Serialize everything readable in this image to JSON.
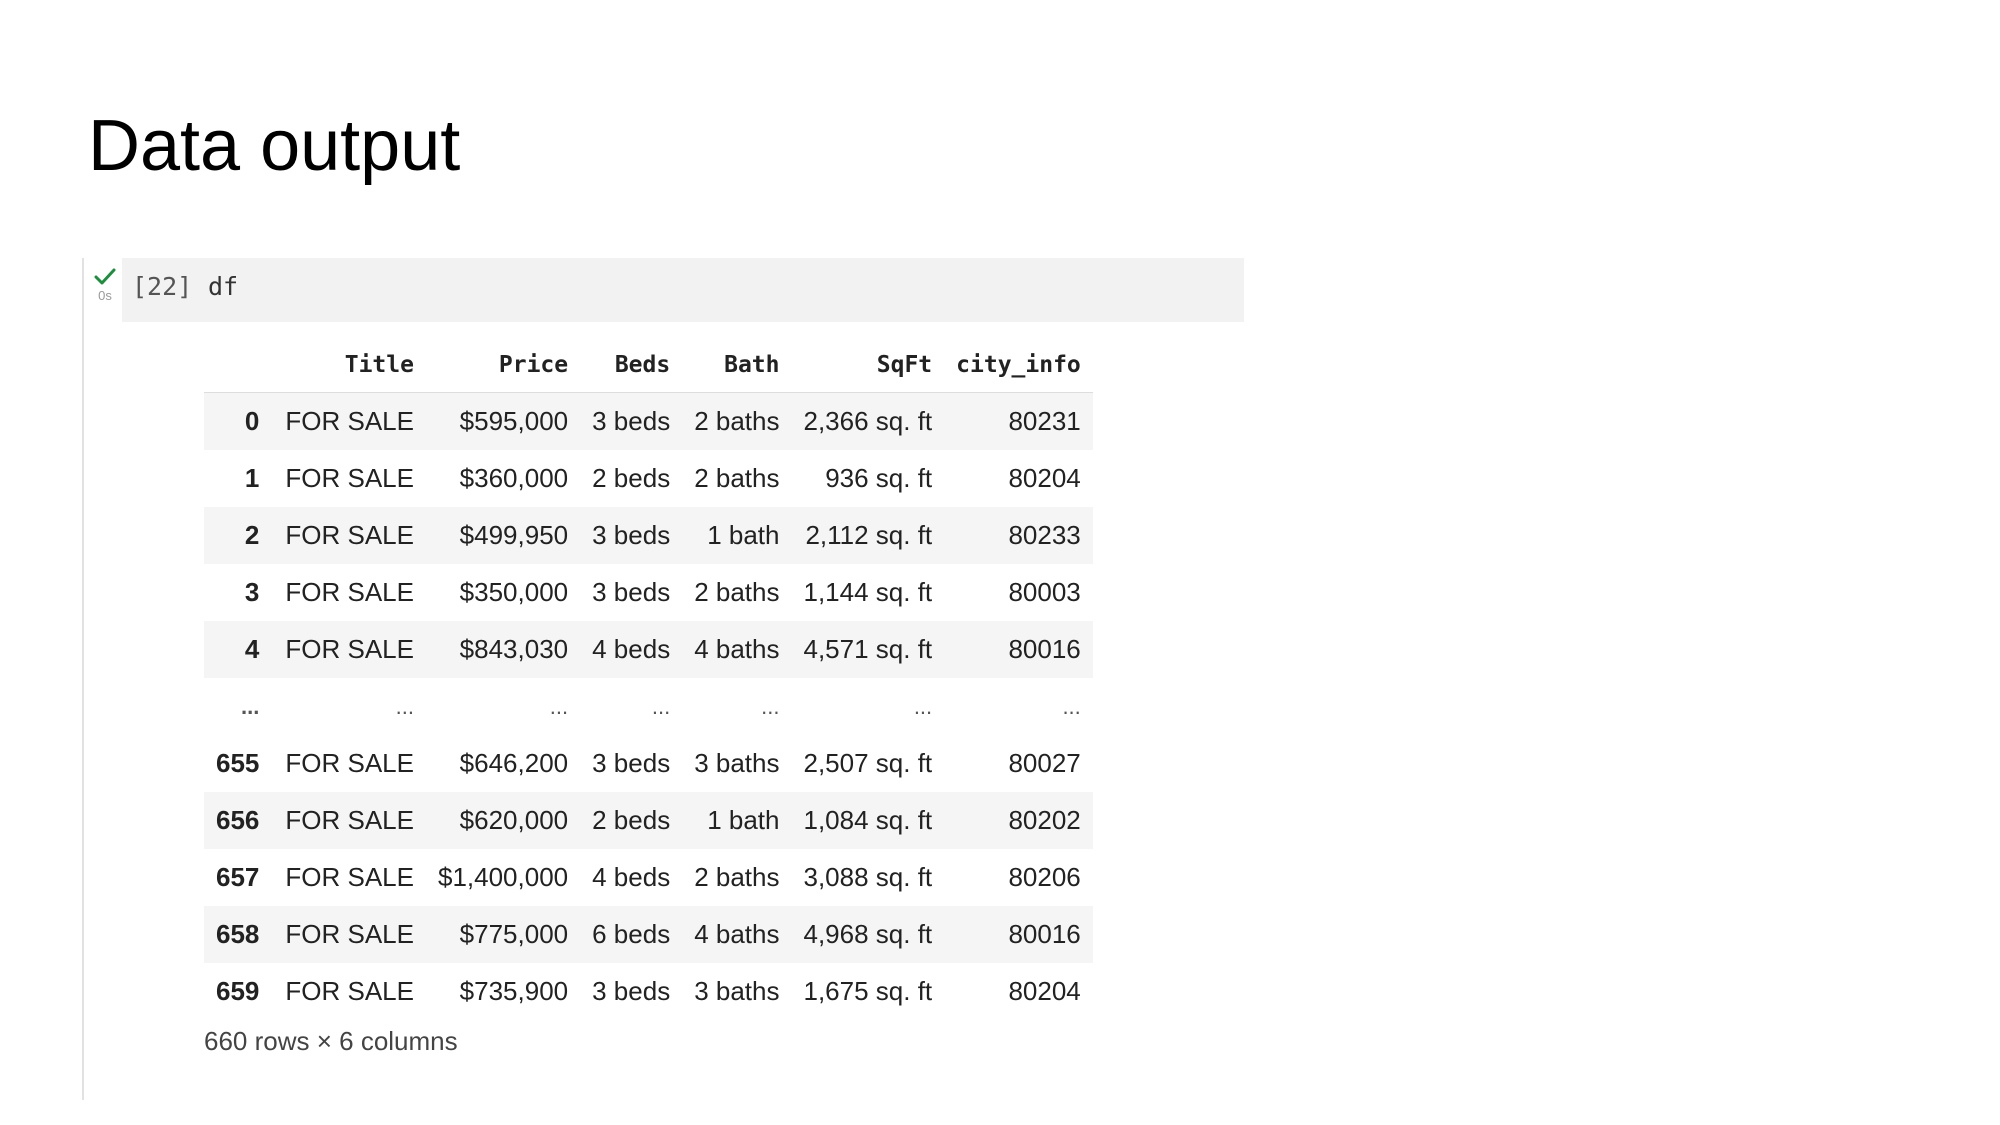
{
  "slide": {
    "title": "Data output"
  },
  "cell": {
    "execution_count": "[22]",
    "code": "df",
    "run_time": "0s",
    "status_color": "#1e8e3e"
  },
  "table": {
    "columns": [
      "",
      "Title",
      "Price",
      "Beds",
      "Bath",
      "SqFt",
      "city_info"
    ],
    "rows": [
      [
        "0",
        "FOR SALE",
        "$595,000",
        "3 beds",
        "2 baths",
        "2,366 sq. ft",
        "80231"
      ],
      [
        "1",
        "FOR SALE",
        "$360,000",
        "2 beds",
        "2 baths",
        "936 sq. ft",
        "80204"
      ],
      [
        "2",
        "FOR SALE",
        "$499,950",
        "3 beds",
        "1 bath",
        "2,112 sq. ft",
        "80233"
      ],
      [
        "3",
        "FOR SALE",
        "$350,000",
        "3 beds",
        "2 baths",
        "1,144 sq. ft",
        "80003"
      ],
      [
        "4",
        "FOR SALE",
        "$843,030",
        "4 beds",
        "4 baths",
        "4,571 sq. ft",
        "80016"
      ],
      [
        "...",
        "...",
        "...",
        "...",
        "...",
        "...",
        "..."
      ],
      [
        "655",
        "FOR SALE",
        "$646,200",
        "3 beds",
        "3 baths",
        "2,507 sq. ft",
        "80027"
      ],
      [
        "656",
        "FOR SALE",
        "$620,000",
        "2 beds",
        "1 bath",
        "1,084 sq. ft",
        "80202"
      ],
      [
        "657",
        "FOR SALE",
        "$1,400,000",
        "4 beds",
        "2 baths",
        "3,088 sq. ft",
        "80206"
      ],
      [
        "658",
        "FOR SALE",
        "$775,000",
        "6 beds",
        "4 baths",
        "4,968 sq. ft",
        "80016"
      ],
      [
        "659",
        "FOR SALE",
        "$735,900",
        "3 beds",
        "3 baths",
        "1,675 sq. ft",
        "80204"
      ]
    ],
    "shape_text": "660 rows × 6 columns"
  }
}
